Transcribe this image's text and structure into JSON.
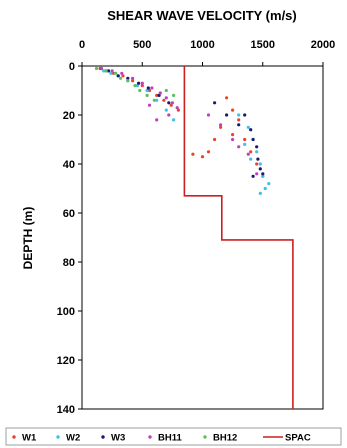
{
  "chart_data": {
    "type": "scatter",
    "title": "SHEAR WAVE VELOCITY (m/s)",
    "xlabel": "SHEAR WAVE VELOCITY (m/s)",
    "ylabel": "DEPTH (m)",
    "xlim": [
      0,
      2000
    ],
    "ylim": [
      0,
      140
    ],
    "y_inverted": true,
    "x_axis_position": "top",
    "grid": false,
    "legend_position": "bottom",
    "x_ticks": [
      "0",
      "500",
      "1000",
      "1500",
      "2000"
    ],
    "y_ticks": [
      "0",
      "20",
      "40",
      "60",
      "80",
      "100",
      "120",
      "140"
    ],
    "series": [
      {
        "name": "W1",
        "kind": "points",
        "color": "#e8452c",
        "points": [
          [
            150,
            1
          ],
          [
            200,
            2
          ],
          [
            260,
            3
          ],
          [
            340,
            4
          ],
          [
            420,
            6
          ],
          [
            500,
            8
          ],
          [
            560,
            10
          ],
          [
            620,
            12
          ],
          [
            680,
            14
          ],
          [
            740,
            16
          ],
          [
            800,
            18
          ],
          [
            1200,
            13
          ],
          [
            1250,
            18
          ],
          [
            1300,
            22
          ],
          [
            1150,
            25
          ],
          [
            1100,
            30
          ],
          [
            1050,
            35
          ],
          [
            1000,
            37
          ],
          [
            920,
            36
          ],
          [
            1250,
            28
          ],
          [
            1350,
            30
          ],
          [
            1400,
            35
          ],
          [
            1450,
            40
          ],
          [
            1500,
            45
          ]
        ]
      },
      {
        "name": "W2",
        "kind": "points",
        "color": "#3fc0e8",
        "points": [
          [
            180,
            2
          ],
          [
            240,
            3
          ],
          [
            300,
            4
          ],
          [
            380,
            6
          ],
          [
            460,
            8
          ],
          [
            540,
            10
          ],
          [
            620,
            14
          ],
          [
            700,
            18
          ],
          [
            760,
            22
          ],
          [
            1300,
            20
          ],
          [
            1380,
            25
          ],
          [
            1420,
            30
          ],
          [
            1450,
            35
          ],
          [
            1480,
            40
          ],
          [
            1500,
            45
          ],
          [
            1520,
            50
          ],
          [
            1550,
            48
          ],
          [
            1480,
            52
          ],
          [
            1350,
            32
          ],
          [
            1400,
            38
          ]
        ]
      },
      {
        "name": "W3",
        "kind": "points",
        "color": "#1a1a70",
        "points": [
          [
            160,
            1
          ],
          [
            220,
            2
          ],
          [
            300,
            4
          ],
          [
            380,
            5
          ],
          [
            470,
            7
          ],
          [
            550,
            9
          ],
          [
            640,
            12
          ],
          [
            720,
            15
          ],
          [
            1100,
            15
          ],
          [
            1200,
            20
          ],
          [
            1300,
            24
          ],
          [
            1400,
            26
          ],
          [
            1420,
            30
          ],
          [
            1450,
            33
          ],
          [
            1460,
            38
          ],
          [
            1480,
            42
          ],
          [
            1500,
            44
          ],
          [
            1420,
            45
          ],
          [
            1350,
            20
          ]
        ]
      },
      {
        "name": "BH11",
        "kind": "points",
        "color": "#c040c0",
        "points": [
          [
            160,
            1
          ],
          [
            250,
            2
          ],
          [
            330,
            3
          ],
          [
            420,
            5
          ],
          [
            500,
            7
          ],
          [
            580,
            9
          ],
          [
            650,
            11
          ],
          [
            700,
            13
          ],
          [
            750,
            15
          ],
          [
            790,
            17
          ],
          [
            560,
            16
          ],
          [
            620,
            22
          ],
          [
            720,
            20
          ],
          [
            1050,
            20
          ],
          [
            1150,
            24
          ],
          [
            1250,
            30
          ],
          [
            1300,
            33
          ],
          [
            1380,
            36
          ],
          [
            1450,
            44
          ]
        ]
      },
      {
        "name": "BH12",
        "kind": "points",
        "color": "#5cc05c",
        "points": [
          [
            120,
            1
          ],
          [
            200,
            2
          ],
          [
            280,
            3
          ],
          [
            320,
            5
          ],
          [
            380,
            6
          ],
          [
            440,
            8
          ],
          [
            480,
            10
          ],
          [
            540,
            12
          ],
          [
            600,
            14
          ],
          [
            700,
            10
          ],
          [
            760,
            12
          ]
        ]
      },
      {
        "name": "SPAC",
        "kind": "step-line",
        "color": "#cc2020",
        "points": [
          [
            850,
            0
          ],
          [
            850,
            53
          ],
          [
            1160,
            53
          ],
          [
            1160,
            71
          ],
          [
            1750,
            71
          ],
          [
            1750,
            140
          ]
        ]
      }
    ]
  }
}
